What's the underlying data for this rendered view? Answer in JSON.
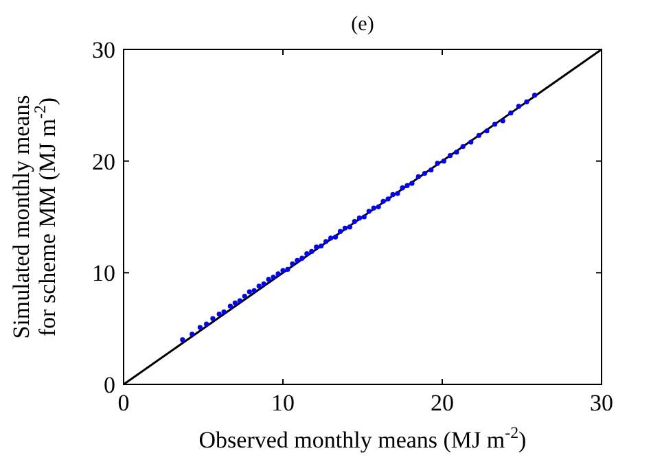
{
  "chart_data": {
    "type": "scatter",
    "title": "(e)",
    "xlabel": "Observed monthly means (MJ m$^{-2}$)",
    "ylabel": "Simulated monthly means\nfor scheme MM (MJ m$^{-2}$)",
    "xlim": [
      0,
      30
    ],
    "ylim": [
      0,
      30
    ],
    "xticks": [
      0,
      10,
      20,
      30
    ],
    "yticks": [
      0,
      10,
      20,
      30
    ],
    "grid": false,
    "series": [
      {
        "color": "#0000ff",
        "marker": "circle",
        "x": [
          3.7,
          4.3,
          4.8,
          5.2,
          5.6,
          6.0,
          6.3,
          6.7,
          7.0,
          7.3,
          7.6,
          7.9,
          8.2,
          8.5,
          8.8,
          9.1,
          9.4,
          9.7,
          10.0,
          10.3,
          10.6,
          10.9,
          11.2,
          11.5,
          11.8,
          12.1,
          12.4,
          12.7,
          13.0,
          13.3,
          13.6,
          13.9,
          14.2,
          14.5,
          14.8,
          15.1,
          15.4,
          15.7,
          16.0,
          16.3,
          16.6,
          16.9,
          17.2,
          17.5,
          17.8,
          18.1,
          18.5,
          18.9,
          19.3,
          19.7,
          20.1,
          20.5,
          20.9,
          21.3,
          21.8,
          22.3,
          22.8,
          23.3,
          23.8,
          24.3,
          24.8,
          25.3,
          25.8
        ],
        "values": [
          4.0,
          4.5,
          5.1,
          5.4,
          5.9,
          6.3,
          6.5,
          7.0,
          7.3,
          7.5,
          7.9,
          8.3,
          8.4,
          8.8,
          9.0,
          9.4,
          9.6,
          9.9,
          10.2,
          10.3,
          10.8,
          11.1,
          11.3,
          11.7,
          11.9,
          12.3,
          12.4,
          12.8,
          13.1,
          13.2,
          13.7,
          14.0,
          14.1,
          14.6,
          14.9,
          15.0,
          15.5,
          15.8,
          15.9,
          16.4,
          16.6,
          17.0,
          17.1,
          17.6,
          17.8,
          18.0,
          18.6,
          18.9,
          19.2,
          19.8,
          20.0,
          20.5,
          20.8,
          21.3,
          21.7,
          22.3,
          22.7,
          23.3,
          23.6,
          24.3,
          24.9,
          25.3,
          25.9
        ]
      },
      {
        "type": "line",
        "color": "#000000",
        "x": [
          0,
          30
        ],
        "values": [
          0,
          30
        ],
        "marker": "none",
        "line_style": "solid"
      }
    ]
  }
}
